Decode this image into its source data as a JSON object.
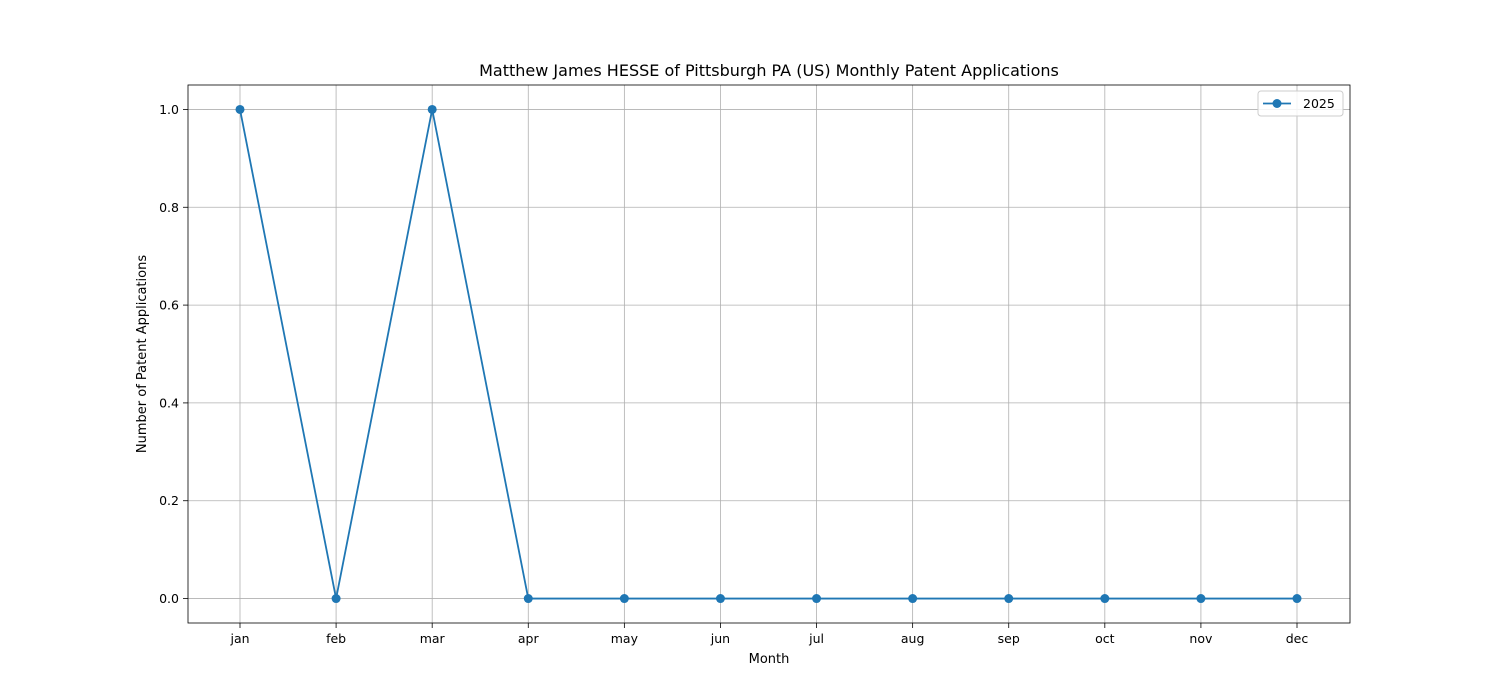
{
  "chart_data": {
    "type": "line",
    "title": "Matthew James HESSE of Pittsburgh PA (US) Monthly Patent Applications",
    "xlabel": "Month",
    "ylabel": "Number of Patent Applications",
    "categories": [
      "jan",
      "feb",
      "mar",
      "apr",
      "may",
      "jun",
      "jul",
      "aug",
      "sep",
      "oct",
      "nov",
      "dec"
    ],
    "series": [
      {
        "name": "2025",
        "values": [
          1,
          0,
          1,
          0,
          0,
          0,
          0,
          0,
          0,
          0,
          0,
          0
        ],
        "color": "#1f77b4",
        "marker": "circle"
      }
    ],
    "ylim": [
      -0.05,
      1.05
    ],
    "yticks": [
      "0.0",
      "0.2",
      "0.4",
      "0.6",
      "0.8",
      "1.0"
    ],
    "grid": true,
    "legend_position": "top-right"
  }
}
